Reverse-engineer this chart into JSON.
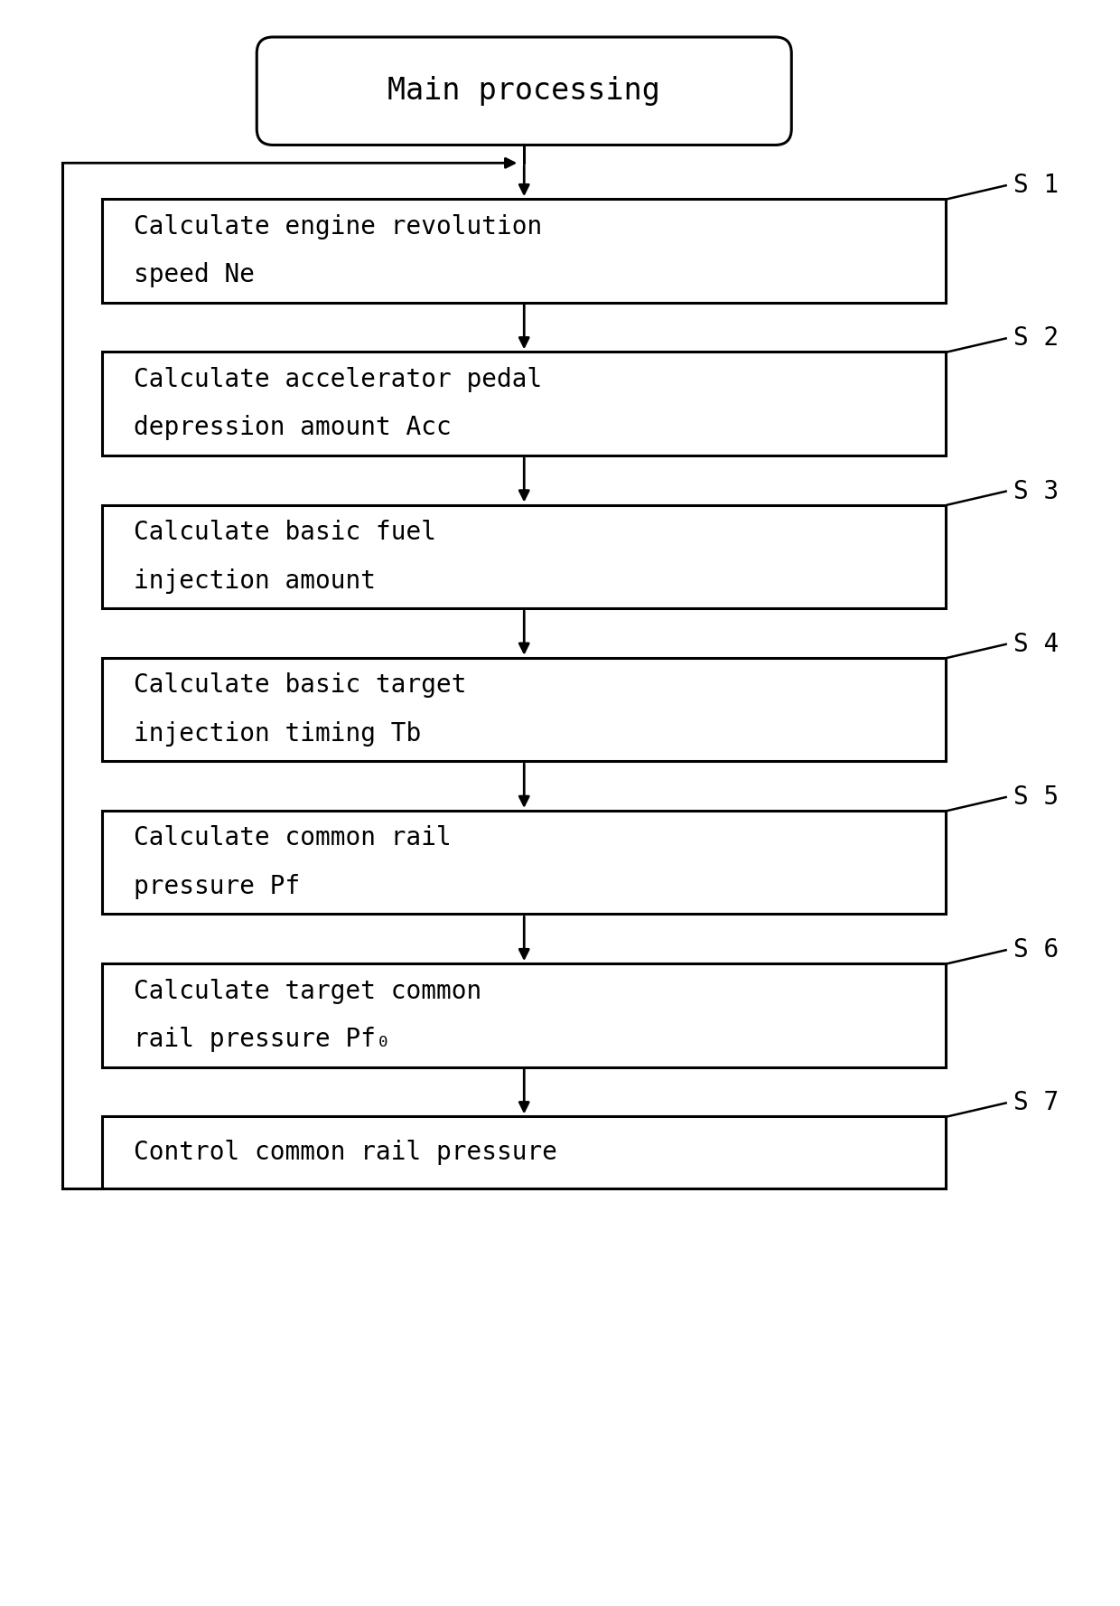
{
  "fig_width": 12.4,
  "fig_height": 17.77,
  "bg_color": "#ffffff",
  "box_edge_color": "#000000",
  "text_color": "#000000",
  "arrow_color": "#000000",
  "title": "Main processing",
  "title_fontsize": 24,
  "step_fontsize": 20,
  "label_fontsize": 20,
  "steps": [
    {
      "label": "S 1",
      "line1": "Calculate engine revolution",
      "line2": "speed Ne"
    },
    {
      "label": "S 2",
      "line1": "Calculate accelerator pedal",
      "line2": "depression amount Acc"
    },
    {
      "label": "S 3",
      "line1": "Calculate basic fuel",
      "line2": "injection amount"
    },
    {
      "label": "S 4",
      "line1": "Calculate basic target",
      "line2": "injection timing Tb"
    },
    {
      "label": "S 5",
      "line1": "Calculate common rail",
      "line2": "pressure Pf"
    },
    {
      "label": "S 6",
      "line1": "Calculate target common",
      "line2": "rail pressure Pf₀"
    },
    {
      "label": "S 7",
      "line1": "Control common rail pressure",
      "line2": null
    }
  ]
}
